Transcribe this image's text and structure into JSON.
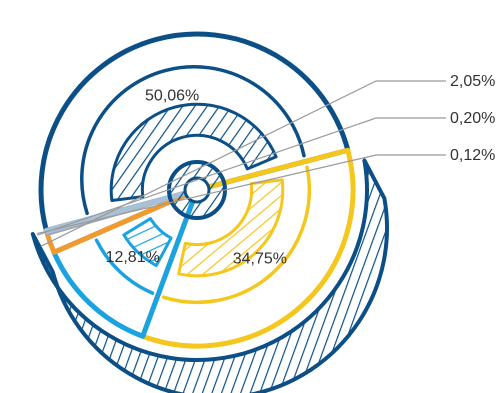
{
  "chart_data": {
    "type": "pie",
    "title": "",
    "slices": [
      {
        "label": "50,06%",
        "value": 50.06,
        "color": "#0b4f86"
      },
      {
        "label": "34,75%",
        "value": 34.75,
        "color": "#f5c61c"
      },
      {
        "label": "12,81%",
        "value": 12.81,
        "color": "#1aa3e0"
      },
      {
        "label": "2,05%",
        "value": 2.05,
        "color": "#f29a2e"
      },
      {
        "label": "0,20%",
        "value": 0.2,
        "color": "#9aa9b3"
      },
      {
        "label": "0,12%",
        "value": 0.12,
        "color": "#a9c1d6"
      }
    ],
    "style": "sketchy hand-drawn pie with hatched fills",
    "legend": "none",
    "labels_placement": "small slices labelled outside with leader lines on the right"
  }
}
